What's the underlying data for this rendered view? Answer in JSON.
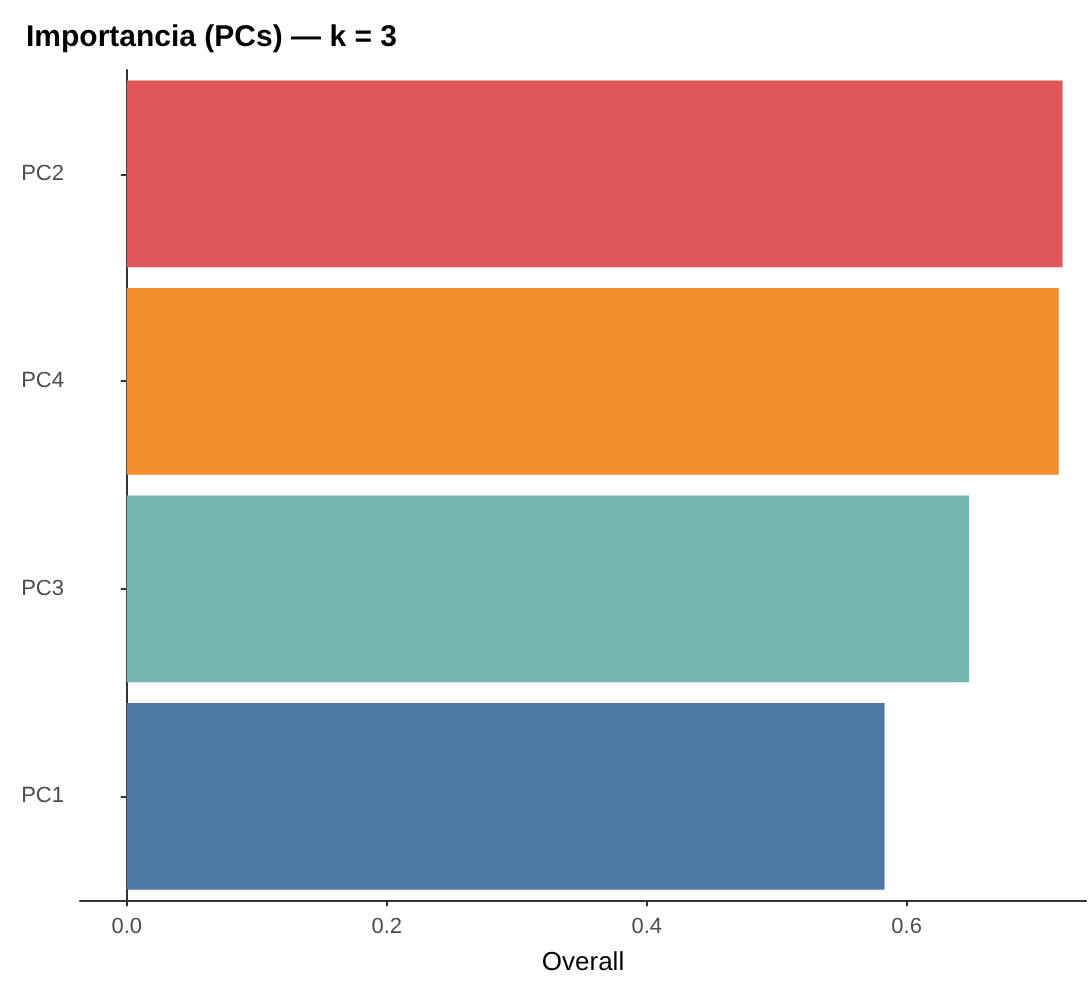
{
  "chart_data": {
    "type": "bar",
    "orientation": "horizontal",
    "title": "Importancia (PCs) — k = 3",
    "xlabel": "Overall",
    "categories": [
      "PC2",
      "PC4",
      "PC3",
      "PC1"
    ],
    "values": [
      0.72,
      0.717,
      0.648,
      0.583
    ],
    "colors": [
      "#e15759",
      "#f28e2b",
      "#76b7b2",
      "#4e79a7"
    ],
    "xlim": [
      -0.036,
      0.738
    ],
    "xticks": [
      {
        "value": 0,
        "label": "0.0"
      },
      0.2,
      0.4,
      0.6
    ]
  }
}
